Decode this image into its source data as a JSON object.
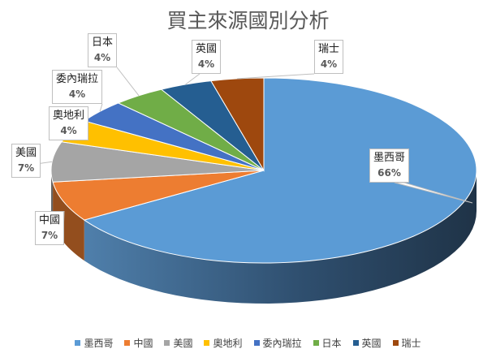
{
  "chart_data": {
    "type": "pie",
    "title": "買主來源國別分析",
    "categories": [
      "墨西哥",
      "中國",
      "美國",
      "奧地利",
      "委內瑞拉",
      "日本",
      "英國",
      "瑞士"
    ],
    "values": [
      66,
      7,
      7,
      4,
      4,
      4,
      4,
      4
    ],
    "value_labels": [
      "66%",
      "7%",
      "7%",
      "4%",
      "4%",
      "4%",
      "4%",
      "4%"
    ],
    "colors": [
      "#5b9bd5",
      "#ed7d31",
      "#a5a5a5",
      "#ffc000",
      "#4472c4",
      "#70ad47",
      "#255e91",
      "#9e480e"
    ],
    "legend_position": "bottom",
    "style": "3d-pie"
  }
}
